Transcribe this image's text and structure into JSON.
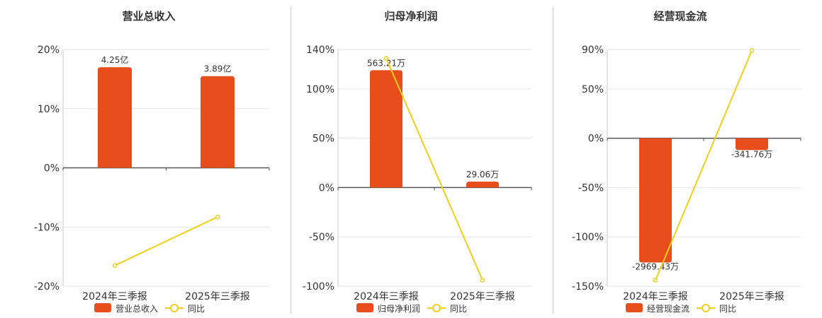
{
  "colors": {
    "bar": "#e84d1c",
    "line": "#f2cf19",
    "axis": "#555555",
    "grid": "#e6e6e6",
    "text": "#333333"
  },
  "chart_data": [
    {
      "type": "bar",
      "title": "营业总收入",
      "categories": [
        "2024年三季报",
        "2025年三季报"
      ],
      "ylim": [
        -20,
        20
      ],
      "yticks": [
        20,
        10,
        0,
        -10,
        -20
      ],
      "ytick_labels": [
        "20%",
        "10%",
        "0%",
        "-10%",
        "-20%"
      ],
      "grid": true,
      "legend_position": "bottom",
      "series": [
        {
          "name": "营业总收入",
          "kind": "bar",
          "values": [
            17,
            15.5
          ],
          "data_labels": [
            "4.25亿",
            "3.89亿"
          ]
        },
        {
          "name": "同比",
          "kind": "line",
          "values": [
            -16.5,
            -8.3
          ]
        }
      ]
    },
    {
      "type": "bar",
      "title": "归母净利润",
      "categories": [
        "2024年三季报",
        "2025年三季报"
      ],
      "ylim": [
        -100,
        140
      ],
      "yticks": [
        140,
        100,
        50,
        0,
        -50,
        -100
      ],
      "ytick_labels": [
        "140%",
        "100%",
        "50%",
        "0%",
        "-50%",
        "-100%"
      ],
      "grid": true,
      "legend_position": "bottom",
      "series": [
        {
          "name": "归母净利润",
          "kind": "bar",
          "values": [
            119,
            6
          ],
          "data_labels": [
            "563.21万",
            "29.06万"
          ]
        },
        {
          "name": "同比",
          "kind": "line",
          "values": [
            131,
            -94
          ]
        }
      ]
    },
    {
      "type": "bar",
      "title": "经营现金流",
      "categories": [
        "2024年三季报",
        "2025年三季报"
      ],
      "ylim": [
        -150,
        90
      ],
      "yticks": [
        90,
        50,
        0,
        -50,
        -100,
        -150
      ],
      "ytick_labels": [
        "90%",
        "50%",
        "0%",
        "-50%",
        "-100%",
        "-150%"
      ],
      "grid": true,
      "legend_position": "bottom",
      "series": [
        {
          "name": "经营现金流",
          "kind": "bar",
          "values": [
            -126,
            -12
          ],
          "data_labels": [
            "-2969.43万",
            "-341.76万"
          ]
        },
        {
          "name": "同比",
          "kind": "line",
          "values": [
            -144,
            89
          ]
        }
      ]
    }
  ]
}
